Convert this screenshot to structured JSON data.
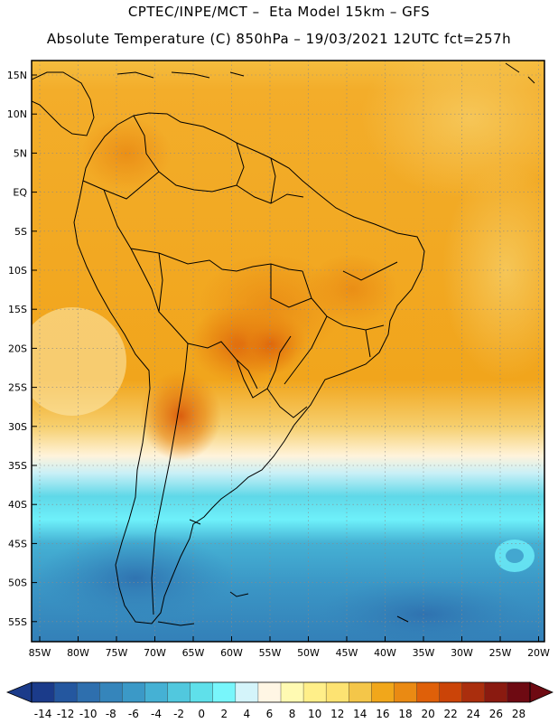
{
  "header": {
    "line1": "CPTEC/INPE/MCT –  Eta Model 15km – GFS",
    "line2": "Absolute Temperature (C) 850hPa – 19/03/2021 12UTC fct=257h"
  },
  "map": {
    "lat_labels": [
      "15N",
      "10N",
      "5N",
      "EQ",
      "5S",
      "10S",
      "15S",
      "20S",
      "25S",
      "30S",
      "35S",
      "40S",
      "45S",
      "50S",
      "55S"
    ],
    "lon_labels": [
      "85W",
      "80W",
      "75W",
      "70W",
      "65W",
      "60W",
      "55W",
      "50W",
      "45W",
      "40W",
      "35W",
      "30W",
      "25W",
      "20W"
    ]
  },
  "colorbar": {
    "labels": [
      "-14",
      "-12",
      "-10",
      "-8",
      "-6",
      "-4",
      "-2",
      "0",
      "2",
      "4",
      "6",
      "8",
      "10",
      "12",
      "14",
      "16",
      "18",
      "20",
      "22",
      "24",
      "26",
      "28"
    ],
    "colors": [
      "#1b3b8a",
      "#24579f",
      "#2e6fae",
      "#3585bb",
      "#3b99c7",
      "#45b1d4",
      "#51c8de",
      "#5fe0ea",
      "#78f6fb",
      "#d4f4fa",
      "#fff6e4",
      "#fffab2",
      "#ffef89",
      "#fde372",
      "#f4c649",
      "#f1a71b",
      "#ea8a13",
      "#df6009",
      "#cb4408",
      "#aa2e0d",
      "#8a1a10",
      "#6e0a12"
    ]
  }
}
